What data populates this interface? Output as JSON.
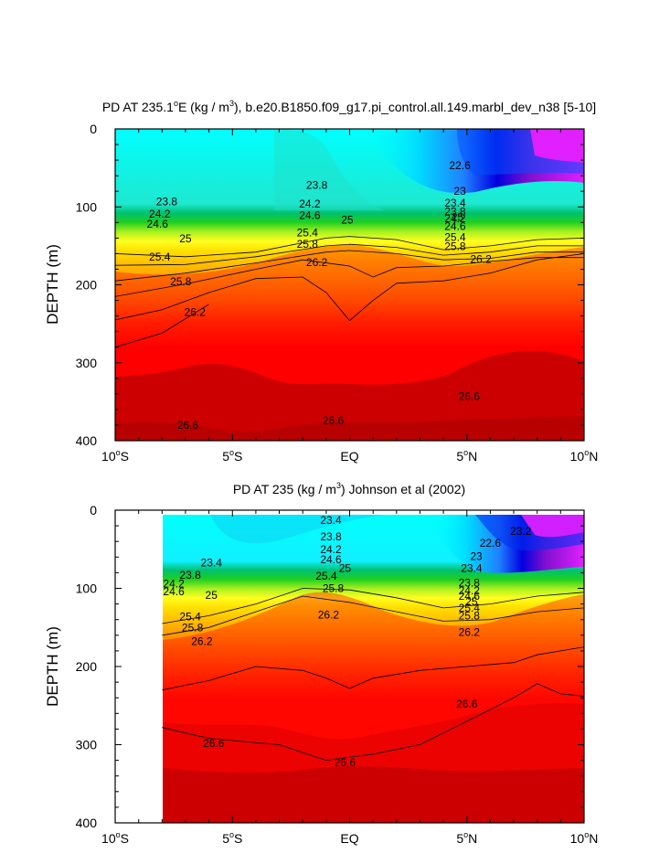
{
  "chart_data": [
    {
      "type": "contour",
      "title": "PD AT 235.1°E (kg / m³), b.e20.B1850.f09_g17.pi_control.all.149.marbl_dev_n38 [5-10]",
      "title_parts": {
        "before": "PD AT 235.1",
        "deg": "o",
        "mid": "E (kg / m",
        "sup": "3",
        "after": "), b.e20.B1850.f09_g17.pi_control.all.149.marbl_dev_n38 [5-10]"
      },
      "ylabel": "DEPTH (m)",
      "xlim": [
        -10,
        10
      ],
      "ylim": [
        0,
        400
      ],
      "y_reversed": true,
      "data_x_start": -10,
      "x_ticks": [
        {
          "value": -10,
          "num": "10",
          "hemi": "S"
        },
        {
          "value": -5,
          "num": "5",
          "hemi": "S"
        },
        {
          "value": 0,
          "num": "EQ",
          "hemi": ""
        },
        {
          "value": 5,
          "num": "5",
          "hemi": "N"
        },
        {
          "value": 10,
          "num": "10",
          "hemi": "N"
        }
      ],
      "y_ticks": [
        "0",
        "100",
        "200",
        "300",
        "400"
      ],
      "contour_labels": [
        {
          "text": "23.8",
          "lat": -7.8,
          "depth": 93
        },
        {
          "text": "24.2",
          "lat": -8.1,
          "depth": 109
        },
        {
          "text": "24.6",
          "lat": -8.2,
          "depth": 122
        },
        {
          "text": "25",
          "lat": -7.0,
          "depth": 141
        },
        {
          "text": "25.4",
          "lat": -8.1,
          "depth": 164
        },
        {
          "text": "25.8",
          "lat": -7.2,
          "depth": 196
        },
        {
          "text": "26.2",
          "lat": -6.6,
          "depth": 235
        },
        {
          "text": "26.6",
          "lat": -6.9,
          "depth": 380
        },
        {
          "text": "23.8",
          "lat": -1.4,
          "depth": 72
        },
        {
          "text": "24.2",
          "lat": -1.7,
          "depth": 96
        },
        {
          "text": "24.6",
          "lat": -1.7,
          "depth": 111
        },
        {
          "text": "25",
          "lat": -0.1,
          "depth": 117
        },
        {
          "text": "25.4",
          "lat": -1.8,
          "depth": 133
        },
        {
          "text": "25.8",
          "lat": -1.8,
          "depth": 148
        },
        {
          "text": "26.2",
          "lat": -1.4,
          "depth": 171
        },
        {
          "text": "26.6",
          "lat": -0.7,
          "depth": 374
        },
        {
          "text": "22.6",
          "lat": 4.7,
          "depth": 47
        },
        {
          "text": "23",
          "lat": 4.7,
          "depth": 80
        },
        {
          "text": "23.4",
          "lat": 4.5,
          "depth": 95
        },
        {
          "text": "23.8",
          "lat": 4.5,
          "depth": 106
        },
        {
          "text": "24.2",
          "lat": 4.5,
          "depth": 115
        },
        {
          "text": "24.6",
          "lat": 4.5,
          "depth": 125
        },
        {
          "text": "25",
          "lat": 4.6,
          "depth": 113
        },
        {
          "text": "25.4",
          "lat": 4.5,
          "depth": 139
        },
        {
          "text": "25.8",
          "lat": 4.5,
          "depth": 151
        },
        {
          "text": "26.2",
          "lat": 5.6,
          "depth": 167
        },
        {
          "text": "26.6",
          "lat": 5.1,
          "depth": 343
        }
      ],
      "isolines": [
        [
          [
            -10,
            160
          ],
          [
            -7,
            164
          ],
          [
            -4,
            158
          ],
          [
            -1,
            140
          ],
          [
            0,
            138
          ],
          [
            2,
            142
          ],
          [
            4,
            155
          ],
          [
            6,
            150
          ],
          [
            8,
            142
          ],
          [
            10,
            140
          ]
        ],
        [
          [
            -10,
            175
          ],
          [
            -7,
            174
          ],
          [
            -4,
            164
          ],
          [
            -1,
            150
          ],
          [
            0,
            148
          ],
          [
            2,
            152
          ],
          [
            4,
            162
          ],
          [
            6,
            158
          ],
          [
            8,
            150
          ],
          [
            10,
            150
          ]
        ],
        [
          [
            -10,
            195
          ],
          [
            -7,
            185
          ],
          [
            -4,
            172
          ],
          [
            -1,
            158
          ],
          [
            0,
            156
          ],
          [
            2,
            160
          ],
          [
            4,
            168
          ],
          [
            6,
            166
          ],
          [
            8,
            158
          ],
          [
            10,
            158
          ]
        ],
        [
          [
            -10,
            215
          ],
          [
            -7,
            199
          ],
          [
            -4,
            180
          ],
          [
            -2,
            168
          ],
          [
            0,
            176
          ],
          [
            1,
            190
          ],
          [
            2,
            178
          ],
          [
            4,
            176
          ],
          [
            6,
            170
          ],
          [
            8,
            165
          ],
          [
            10,
            165
          ]
        ],
        [
          [
            -10,
            245
          ],
          [
            -8,
            232
          ],
          [
            -6,
            210
          ],
          [
            -4,
            192
          ],
          [
            -2,
            190
          ],
          [
            -1,
            210
          ],
          [
            0,
            246
          ],
          [
            1,
            220
          ],
          [
            2,
            198
          ],
          [
            4,
            195
          ],
          [
            6,
            185
          ],
          [
            8,
            168
          ],
          [
            10,
            160
          ]
        ],
        [
          [
            -10,
            280
          ],
          [
            -8,
            262
          ],
          [
            -6,
            225
          ]
        ]
      ]
    },
    {
      "type": "contour",
      "title": "PD AT 235 (kg / m³) Johnson et al (2002)",
      "title_parts": {
        "before": "PD AT 235 (kg / m",
        "sup": "3",
        "after": ") Johnson et al (2002)"
      },
      "ylabel": "DEPTH (m)",
      "xlim": [
        -10,
        10
      ],
      "ylim": [
        0,
        400
      ],
      "y_reversed": true,
      "data_x_start": -8,
      "x_ticks": [
        {
          "value": -10,
          "num": "10",
          "hemi": "S"
        },
        {
          "value": -5,
          "num": "5",
          "hemi": "S"
        },
        {
          "value": 0,
          "num": "EQ",
          "hemi": ""
        },
        {
          "value": 5,
          "num": "5",
          "hemi": "N"
        },
        {
          "value": 10,
          "num": "10",
          "hemi": "N"
        }
      ],
      "y_ticks": [
        "0",
        "100",
        "200",
        "300",
        "400"
      ],
      "contour_labels": [
        {
          "text": "23.4",
          "lat": -5.9,
          "depth": 67
        },
        {
          "text": "23.8",
          "lat": -6.8,
          "depth": 83
        },
        {
          "text": "24.2",
          "lat": -7.5,
          "depth": 94
        },
        {
          "text": "24.6",
          "lat": -7.5,
          "depth": 104
        },
        {
          "text": "25",
          "lat": -5.9,
          "depth": 109
        },
        {
          "text": "25.4",
          "lat": -6.8,
          "depth": 136
        },
        {
          "text": "25.8",
          "lat": -6.7,
          "depth": 150
        },
        {
          "text": "26.2",
          "lat": -6.3,
          "depth": 168
        },
        {
          "text": "26.6",
          "lat": -5.8,
          "depth": 298
        },
        {
          "text": "23.4",
          "lat": -0.8,
          "depth": 13
        },
        {
          "text": "23.8",
          "lat": -0.8,
          "depth": 34
        },
        {
          "text": "24.2",
          "lat": -0.8,
          "depth": 50
        },
        {
          "text": "24.6",
          "lat": -0.8,
          "depth": 63
        },
        {
          "text": "25",
          "lat": -0.2,
          "depth": 74
        },
        {
          "text": "25.4",
          "lat": -1.0,
          "depth": 84
        },
        {
          "text": "25.8",
          "lat": -0.7,
          "depth": 100
        },
        {
          "text": "26.2",
          "lat": -0.9,
          "depth": 134
        },
        {
          "text": "26.6",
          "lat": -0.2,
          "depth": 323
        },
        {
          "text": "23.2",
          "lat": 7.3,
          "depth": 27
        },
        {
          "text": "22.6",
          "lat": 6.0,
          "depth": 42
        },
        {
          "text": "23",
          "lat": 5.4,
          "depth": 59
        },
        {
          "text": "23.4",
          "lat": 5.2,
          "depth": 74
        },
        {
          "text": "23.8",
          "lat": 5.1,
          "depth": 93
        },
        {
          "text": "24.2",
          "lat": 5.1,
          "depth": 103
        },
        {
          "text": "24.6",
          "lat": 5.1,
          "depth": 110
        },
        {
          "text": "25",
          "lat": 5.2,
          "depth": 117
        },
        {
          "text": "25.4",
          "lat": 5.1,
          "depth": 125
        },
        {
          "text": "25.8",
          "lat": 5.1,
          "depth": 135
        },
        {
          "text": "26.2",
          "lat": 5.1,
          "depth": 156
        },
        {
          "text": "26.6",
          "lat": 5.0,
          "depth": 248
        }
      ],
      "isolines": [
        [
          [
            -8,
            145
          ],
          [
            -6,
            135
          ],
          [
            -4,
            120
          ],
          [
            -2,
            100
          ],
          [
            0,
            102
          ],
          [
            2,
            112
          ],
          [
            4,
            125
          ],
          [
            6,
            120
          ],
          [
            8,
            110
          ],
          [
            10,
            105
          ]
        ],
        [
          [
            -8,
            160
          ],
          [
            -6,
            150
          ],
          [
            -4,
            130
          ],
          [
            -2,
            110
          ],
          [
            0,
            118
          ],
          [
            2,
            130
          ],
          [
            4,
            142
          ],
          [
            6,
            140
          ],
          [
            8,
            130
          ],
          [
            10,
            125
          ]
        ],
        [
          [
            -8,
            230
          ],
          [
            -6,
            218
          ],
          [
            -4,
            200
          ],
          [
            -2,
            205
          ],
          [
            -1,
            215
          ],
          [
            0,
            228
          ],
          [
            1,
            215
          ],
          [
            3,
            205
          ],
          [
            5,
            200
          ],
          [
            7,
            195
          ],
          [
            8,
            185
          ],
          [
            10,
            175
          ]
        ],
        [
          [
            -8,
            278
          ],
          [
            -6,
            292
          ],
          [
            -3,
            300
          ],
          [
            -1,
            320
          ],
          [
            1,
            312
          ],
          [
            3,
            300
          ],
          [
            5,
            270
          ],
          [
            7,
            240
          ],
          [
            8,
            222
          ],
          [
            9,
            235
          ],
          [
            10,
            238
          ]
        ]
      ]
    }
  ]
}
